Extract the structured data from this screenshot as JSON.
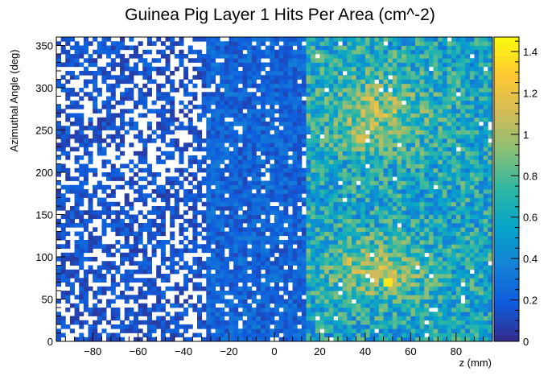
{
  "chart_data": {
    "type": "heatmap",
    "title": "Guinea Pig Layer 1 Hits Per Area (cm^-2)",
    "xlabel": "z (mm)",
    "ylabel": "Azimuthal Angle (deg)",
    "xlim": [
      -96,
      96
    ],
    "ylim": [
      0,
      360
    ],
    "x_ticks": [
      -80,
      -60,
      -40,
      -20,
      0,
      20,
      40,
      60,
      80
    ],
    "y_ticks": [
      0,
      50,
      100,
      150,
      200,
      250,
      300,
      350
    ],
    "zlim": [
      0,
      1.47
    ],
    "z_ticks": [
      0,
      0.2,
      0.4,
      0.6,
      0.8,
      1,
      1.2,
      1.4
    ],
    "x_bins": 96,
    "y_bins": 72,
    "colormap": [
      "#352a87",
      "#0f5cdd",
      "#1481d6",
      "#06a4ca",
      "#2eb7a4",
      "#87bf77",
      "#d1bb59",
      "#fec832",
      "#f9fb0e"
    ],
    "empty_color": "#ffffff",
    "grid": false,
    "colorbar": "right",
    "hotspots": [
      {
        "x": 44,
        "y": 80,
        "z": 1.1
      },
      {
        "x": 50,
        "y": 70,
        "z": 1.4
      },
      {
        "x": 33,
        "y": 95,
        "z": 1.2
      },
      {
        "x": 43,
        "y": 280,
        "z": 1.1
      },
      {
        "x": 38,
        "y": 240,
        "z": 1.15
      },
      {
        "x": 45,
        "y": 300,
        "z": 1.05
      }
    ],
    "regions": [
      {
        "x_range": [
          -96,
          -30
        ],
        "typical_z": [
          0.05,
          0.25
        ],
        "empty_fraction": 0.42
      },
      {
        "x_range": [
          -30,
          15
        ],
        "typical_z": [
          0.1,
          0.35
        ],
        "empty_fraction": 0.1
      },
      {
        "x_range": [
          15,
          96
        ],
        "typical_z": [
          0.3,
          0.9
        ],
        "empty_fraction": 0.02
      }
    ]
  }
}
